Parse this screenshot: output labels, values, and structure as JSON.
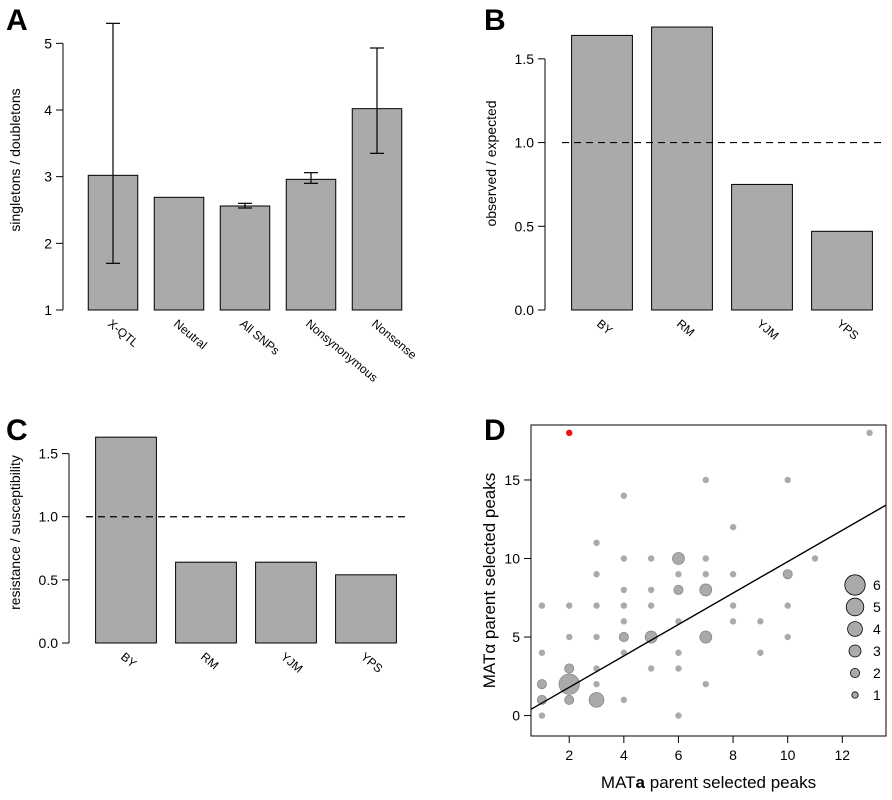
{
  "chart_data": [
    {
      "panel": "A",
      "type": "bar",
      "categories": [
        "X-QTL",
        "Neutral",
        "All SNPs",
        "Nonsynonymous",
        "Nonsense"
      ],
      "values": [
        3.02,
        2.69,
        2.56,
        2.96,
        4.02
      ],
      "error_low": [
        1.7,
        null,
        2.53,
        2.9,
        3.35
      ],
      "error_high": [
        5.3,
        null,
        2.6,
        3.06,
        4.93
      ],
      "ylabel": "singletons / doubletons",
      "xlabel": "",
      "ylim": [
        1,
        5.5
      ],
      "yticks": [
        1,
        2,
        3,
        4,
        5
      ],
      "bar_color": "#aaaaaa",
      "rotated_labels": true
    },
    {
      "panel": "B",
      "type": "bar",
      "categories": [
        "BY",
        "RM",
        "YJM",
        "YPS"
      ],
      "values": [
        1.64,
        1.69,
        0.75,
        0.47
      ],
      "ylabel": "observed / expected",
      "xlabel": "",
      "ylim": [
        0,
        1.75
      ],
      "yticks": [
        "0.0",
        "0.5",
        "1.0",
        "1.5"
      ],
      "reference_line": 1.0,
      "bar_color": "#aaaaaa",
      "rotated_labels": true
    },
    {
      "panel": "C",
      "type": "bar",
      "categories": [
        "BY",
        "RM",
        "YJM",
        "YPS"
      ],
      "values": [
        1.63,
        0.64,
        0.64,
        0.54
      ],
      "ylabel": "resistance / susceptibility",
      "xlabel": "",
      "ylim": [
        0,
        1.75
      ],
      "yticks": [
        "0.0",
        "0.5",
        "1.0",
        "1.5"
      ],
      "reference_line": 1.0,
      "bar_color": "#aaaaaa",
      "rotated_labels": true
    },
    {
      "panel": "D",
      "type": "scatter",
      "xlabel_prefix": "MAT",
      "xlabel_bold": "a",
      "xlabel_suffix": " parent selected peaks",
      "ylabel": "MATα parent selected peaks",
      "xlim": [
        0.6,
        13.6
      ],
      "ylim": [
        -1.3,
        18.5
      ],
      "xticks": [
        2,
        4,
        6,
        8,
        10,
        12
      ],
      "yticks": [
        0,
        5,
        10,
        15
      ],
      "regression_line": {
        "x": [
          0.6,
          13.6
        ],
        "y": [
          0.4,
          13.4
        ]
      },
      "point_color": "#aaaaaa",
      "highlight_color": "#ee1111",
      "points": [
        {
          "x": 1,
          "y": 0,
          "n": 1
        },
        {
          "x": 1,
          "y": 1,
          "n": 2
        },
        {
          "x": 1,
          "y": 2,
          "n": 2
        },
        {
          "x": 1,
          "y": 4,
          "n": 1
        },
        {
          "x": 1,
          "y": 7,
          "n": 1
        },
        {
          "x": 2,
          "y": 1,
          "n": 2
        },
        {
          "x": 2,
          "y": 2,
          "n": 6
        },
        {
          "x": 2,
          "y": 3,
          "n": 2
        },
        {
          "x": 2,
          "y": 5,
          "n": 1
        },
        {
          "x": 2,
          "y": 7,
          "n": 1
        },
        {
          "x": 2,
          "y": 18,
          "n": 1,
          "highlight": true
        },
        {
          "x": 3,
          "y": 1,
          "n": 4
        },
        {
          "x": 3,
          "y": 2,
          "n": 1
        },
        {
          "x": 3,
          "y": 3,
          "n": 1
        },
        {
          "x": 3,
          "y": 5,
          "n": 1
        },
        {
          "x": 3,
          "y": 7,
          "n": 1
        },
        {
          "x": 3,
          "y": 9,
          "n": 1
        },
        {
          "x": 3,
          "y": 11,
          "n": 1
        },
        {
          "x": 4,
          "y": 1,
          "n": 1
        },
        {
          "x": 4,
          "y": 4,
          "n": 1
        },
        {
          "x": 4,
          "y": 5,
          "n": 2
        },
        {
          "x": 4,
          "y": 6,
          "n": 1
        },
        {
          "x": 4,
          "y": 7,
          "n": 1
        },
        {
          "x": 4,
          "y": 8,
          "n": 1
        },
        {
          "x": 4,
          "y": 10,
          "n": 1
        },
        {
          "x": 4,
          "y": 14,
          "n": 1
        },
        {
          "x": 5,
          "y": 3,
          "n": 1
        },
        {
          "x": 5,
          "y": 5,
          "n": 3
        },
        {
          "x": 5,
          "y": 7,
          "n": 1
        },
        {
          "x": 5,
          "y": 8,
          "n": 1
        },
        {
          "x": 5,
          "y": 10,
          "n": 1
        },
        {
          "x": 6,
          "y": 0,
          "n": 1
        },
        {
          "x": 6,
          "y": 3,
          "n": 1
        },
        {
          "x": 6,
          "y": 4,
          "n": 1
        },
        {
          "x": 6,
          "y": 6,
          "n": 1
        },
        {
          "x": 6,
          "y": 8,
          "n": 2
        },
        {
          "x": 6,
          "y": 9,
          "n": 1
        },
        {
          "x": 6,
          "y": 10,
          "n": 3
        },
        {
          "x": 7,
          "y": 2,
          "n": 1
        },
        {
          "x": 7,
          "y": 5,
          "n": 3
        },
        {
          "x": 7,
          "y": 8,
          "n": 3
        },
        {
          "x": 7,
          "y": 9,
          "n": 1
        },
        {
          "x": 7,
          "y": 10,
          "n": 1
        },
        {
          "x": 7,
          "y": 15,
          "n": 1
        },
        {
          "x": 8,
          "y": 6,
          "n": 1
        },
        {
          "x": 8,
          "y": 7,
          "n": 1
        },
        {
          "x": 8,
          "y": 9,
          "n": 1
        },
        {
          "x": 8,
          "y": 12,
          "n": 1
        },
        {
          "x": 9,
          "y": 4,
          "n": 1
        },
        {
          "x": 9,
          "y": 6,
          "n": 1
        },
        {
          "x": 10,
          "y": 5,
          "n": 1
        },
        {
          "x": 10,
          "y": 7,
          "n": 1
        },
        {
          "x": 10,
          "y": 9,
          "n": 2
        },
        {
          "x": 10,
          "y": 15,
          "n": 1
        },
        {
          "x": 11,
          "y": 10,
          "n": 1
        },
        {
          "x": 13,
          "y": 18,
          "n": 1
        }
      ],
      "legend": {
        "sizes": [
          6,
          5,
          4,
          3,
          2,
          1
        ],
        "position": "right"
      }
    }
  ],
  "panels": {
    "A": "A",
    "B": "B",
    "C": "C",
    "D": "D"
  }
}
